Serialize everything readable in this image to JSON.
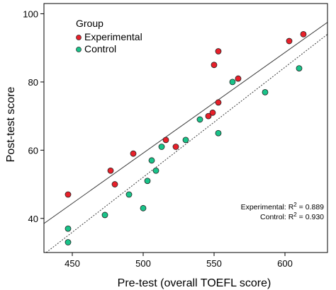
{
  "chart_data": {
    "type": "scatter",
    "xlabel": "Pre-test (overall TOEFL score)",
    "ylabel": "Post-test score",
    "xlim": [
      430,
      630
    ],
    "ylim": [
      30,
      103
    ],
    "xticks": [
      450,
      500,
      550,
      600
    ],
    "yticks": [
      40,
      60,
      80,
      100
    ],
    "grid": false,
    "legend": {
      "title": "Group",
      "placement": "top-left",
      "entries": [
        "Experimental",
        "Control"
      ]
    },
    "series": [
      {
        "name": "Experimental",
        "color": "#e8202a",
        "marker": "circle",
        "fit": {
          "style": "solid",
          "from": [
            430,
            38.5
          ],
          "to": [
            630,
            97.5
          ]
        },
        "points": [
          [
            447,
            47
          ],
          [
            477,
            54
          ],
          [
            480,
            50
          ],
          [
            493,
            59
          ],
          [
            516,
            63
          ],
          [
            523,
            61
          ],
          [
            546,
            70
          ],
          [
            549,
            71
          ],
          [
            553,
            74
          ],
          [
            550,
            85
          ],
          [
            553,
            89
          ],
          [
            567,
            81
          ],
          [
            603,
            92
          ],
          [
            613,
            94
          ]
        ]
      },
      {
        "name": "Control",
        "color": "#19c389",
        "marker": "circle",
        "fit": {
          "style": "dotted",
          "from": [
            430,
            29.5
          ],
          "to": [
            630,
            94
          ]
        },
        "points": [
          [
            447,
            33
          ],
          [
            447,
            37
          ],
          [
            473,
            41
          ],
          [
            490,
            47
          ],
          [
            500,
            43
          ],
          [
            503,
            51
          ],
          [
            506,
            57
          ],
          [
            509,
            54
          ],
          [
            513,
            61
          ],
          [
            530,
            63
          ],
          [
            540,
            69
          ],
          [
            553,
            65
          ],
          [
            563,
            80
          ],
          [
            586,
            77
          ],
          [
            610,
            84
          ]
        ]
      }
    ],
    "annotations": [
      {
        "label": "Experimental: R",
        "sup": "2",
        "value": " = 0.889"
      },
      {
        "label": "Control: R",
        "sup": "2",
        "value": " = 0.930"
      }
    ]
  }
}
